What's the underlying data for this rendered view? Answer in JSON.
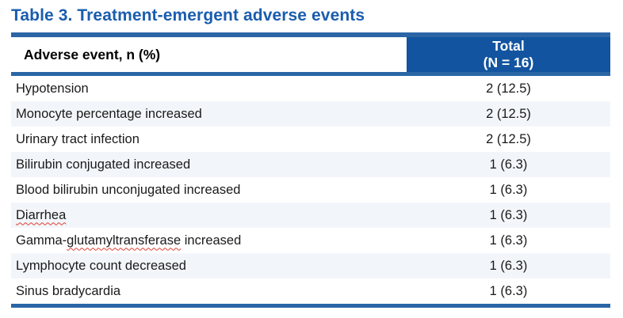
{
  "title": "Table 3. Treatment-emergent adverse events",
  "colors": {
    "title_blue": "#1A5DAE",
    "header_blue": "#12549F",
    "rule_blue": "#2B65A6",
    "stripe": "#F2F6FA",
    "squiggle_red": "#E03C31",
    "text": "#1A1A1A"
  },
  "table": {
    "header": {
      "col1": "Adverse event, n (%)",
      "col2_line1": "Total",
      "col2_line2": "(N = 16)"
    },
    "rows": [
      {
        "event": "Hypotension",
        "value": "2 (12.5)"
      },
      {
        "event": "Monocyte percentage increased",
        "value": "2 (12.5)"
      },
      {
        "event": "Urinary tract infection",
        "value": "2 (12.5)"
      },
      {
        "event": "Bilirubin conjugated increased",
        "value": "1 (6.3)"
      },
      {
        "event": "Blood bilirubin unconjugated increased",
        "value": "1 (6.3)"
      },
      {
        "event": "Diarrhea",
        "value": "1 (6.3)",
        "misspelled": "Diarrhea"
      },
      {
        "event": "Gamma-glutamyltransferase increased",
        "value": "1 (6.3)",
        "misspelled": "glutamyltransferase"
      },
      {
        "event": "Lymphocyte count decreased",
        "value": "1 (6.3)"
      },
      {
        "event": "Sinus bradycardia",
        "value": "1 (6.3)"
      }
    ]
  }
}
